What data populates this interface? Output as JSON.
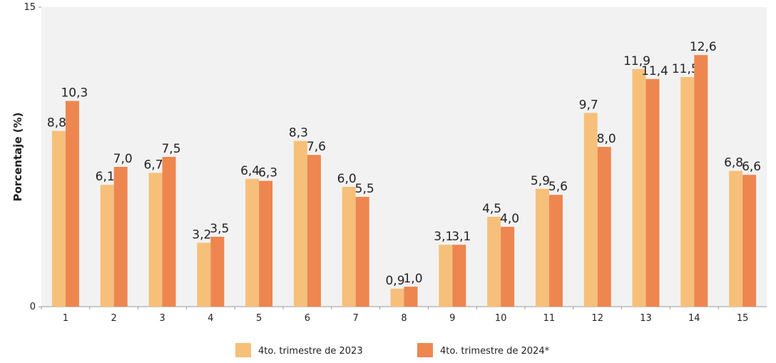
{
  "chart_data": {
    "type": "bar",
    "y_label": "Porcentaje (%)",
    "categories": [
      "1",
      "2",
      "3",
      "4",
      "5",
      "6",
      "7",
      "8",
      "9",
      "10",
      "11",
      "12",
      "13",
      "14",
      "15"
    ],
    "series": [
      {
        "name": "4to. trimestre de 2023",
        "color": "#f6c07a",
        "values": [
          8.8,
          6.1,
          6.7,
          3.2,
          6.4,
          8.3,
          6.0,
          0.9,
          3.1,
          4.5,
          5.9,
          9.7,
          11.9,
          11.5,
          6.8
        ],
        "value_labels": [
          "8,8",
          "6,1",
          "6,7",
          "3,2",
          "6,4",
          "8,3",
          "6,0",
          "0,9",
          "3,1",
          "4,5",
          "5,9",
          "9,7",
          "11,9",
          "11,5",
          "6,8"
        ]
      },
      {
        "name": "4to. trimestre de 2024*",
        "color": "#ee8650",
        "values": [
          10.3,
          7.0,
          7.5,
          3.5,
          6.3,
          7.6,
          5.5,
          1.0,
          3.1,
          4.0,
          5.6,
          8.0,
          11.4,
          12.6,
          6.6
        ],
        "value_labels": [
          "10,3",
          "7,0",
          "7,5",
          "3,5",
          "6,3",
          "7,6",
          "5,5",
          "1,0",
          "3,1",
          "4,0",
          "5,6",
          "8,0",
          "11,4",
          "12,6",
          "6,6"
        ]
      }
    ],
    "ylim": [
      0,
      15
    ],
    "yticks": [
      0,
      15
    ],
    "plot_background": "#f2f2f2"
  }
}
